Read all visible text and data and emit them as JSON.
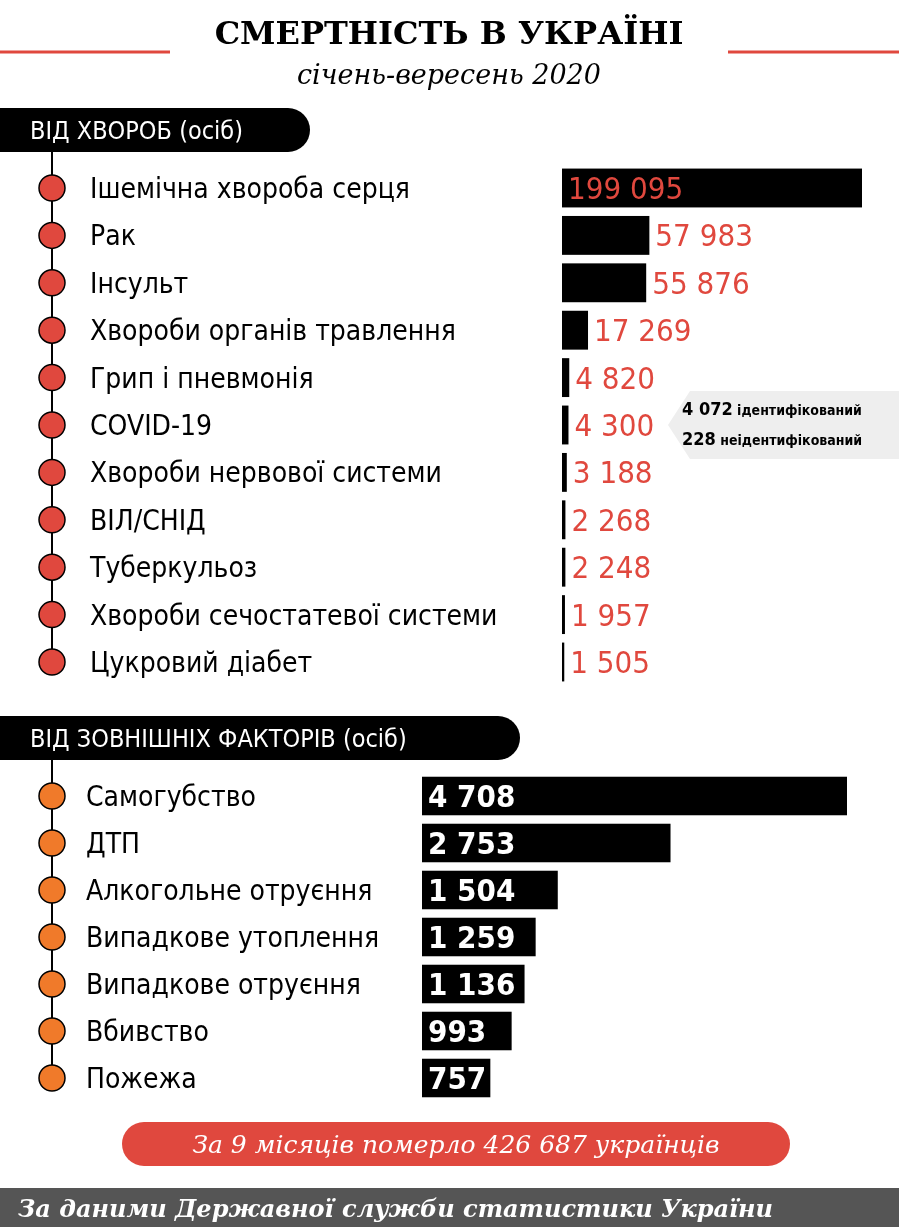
{
  "chart_data": [
    {
      "type": "bar",
      "orientation": "horizontal",
      "title": "СМЕРТНІСТЬ В УКРАЇНІ",
      "subtitle": "січень-вересень 2020",
      "ylabel": "ВІД ХВОРОБ (осіб)",
      "categories": [
        "Ішемічна хвороба серця",
        "Рак",
        "Інсульт",
        "Хвороби органів травлення",
        "Грип і пневмонія",
        "COVID-19",
        "Хвороби нервової системи",
        "ВІЛ/СНІД",
        "Туберкульоз",
        "Хвороби сечостатевої системи",
        "Цукровий діабет"
      ],
      "values": [
        199095,
        57983,
        55876,
        17269,
        4820,
        4300,
        3188,
        2268,
        2248,
        1957,
        1505
      ],
      "value_labels": [
        "199 095",
        "57 983",
        "55 876",
        "17 269",
        "4 820",
        "4 300",
        "3 188",
        "2 268",
        "2 248",
        "1 957",
        "1 505"
      ],
      "color": "#000000",
      "annotations": [
        "4 072 ідентифікований",
        "228 неідентифікований"
      ]
    },
    {
      "type": "bar",
      "orientation": "horizontal",
      "ylabel": "ВІД ЗОВНІШНІХ ФАКТОРІВ (осіб)",
      "categories": [
        "Самогубство",
        "ДТП",
        "Алкогольне отруєння",
        "Випадкове утоплення",
        "Випадкове отруєння",
        "Вбивство",
        "Пожежа"
      ],
      "values": [
        4708,
        2753,
        1504,
        1259,
        1136,
        993,
        757
      ],
      "value_labels": [
        "4 708",
        "2 753",
        "1 504",
        "1 259",
        "1 136",
        "993",
        "757"
      ],
      "color": "#000000",
      "annotations": [
        "За 9 місяців померло 426 687 українців",
        "За даними Державної служби статистики України"
      ]
    }
  ]
}
